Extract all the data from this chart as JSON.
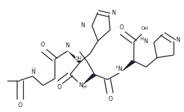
{
  "lc": "#1c1c2e",
  "lw": 0.9,
  "fs": 5.8,
  "fh": 4.8,
  "xlim": [
    0.0,
    1.0
  ],
  "ylim": [
    0.0,
    1.0
  ]
}
